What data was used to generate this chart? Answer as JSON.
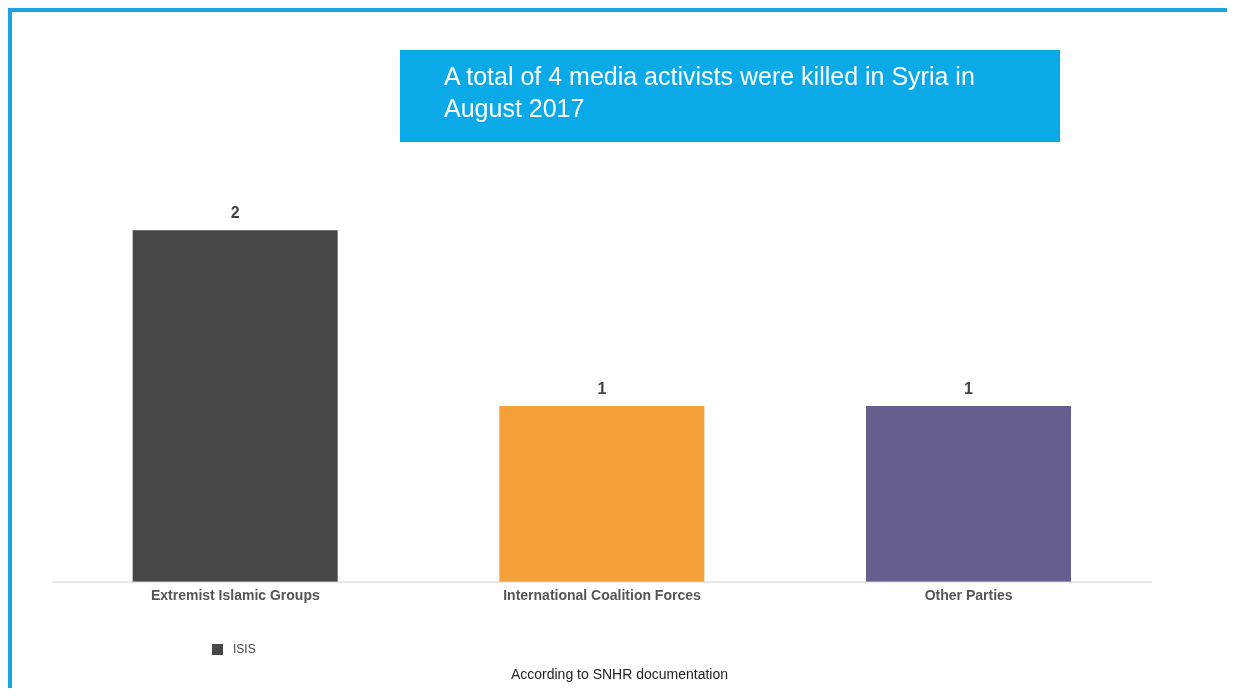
{
  "chart_data": {
    "type": "bar",
    "title": "A total of 4 media activists were killed in Syria in August 2017",
    "categories": [
      "Extremist Islamic Groups",
      "International Coalition Forces",
      "Other Parties"
    ],
    "series": [
      {
        "name": "ISIS",
        "color": "#474747",
        "colors": [
          "#474747",
          "#f5a13a",
          "#635f8f"
        ],
        "values": [
          2,
          1,
          1
        ]
      }
    ],
    "data_labels": true,
    "legend": "bottom left",
    "annotations": [
      "According to SNHR documentation"
    ]
  }
}
